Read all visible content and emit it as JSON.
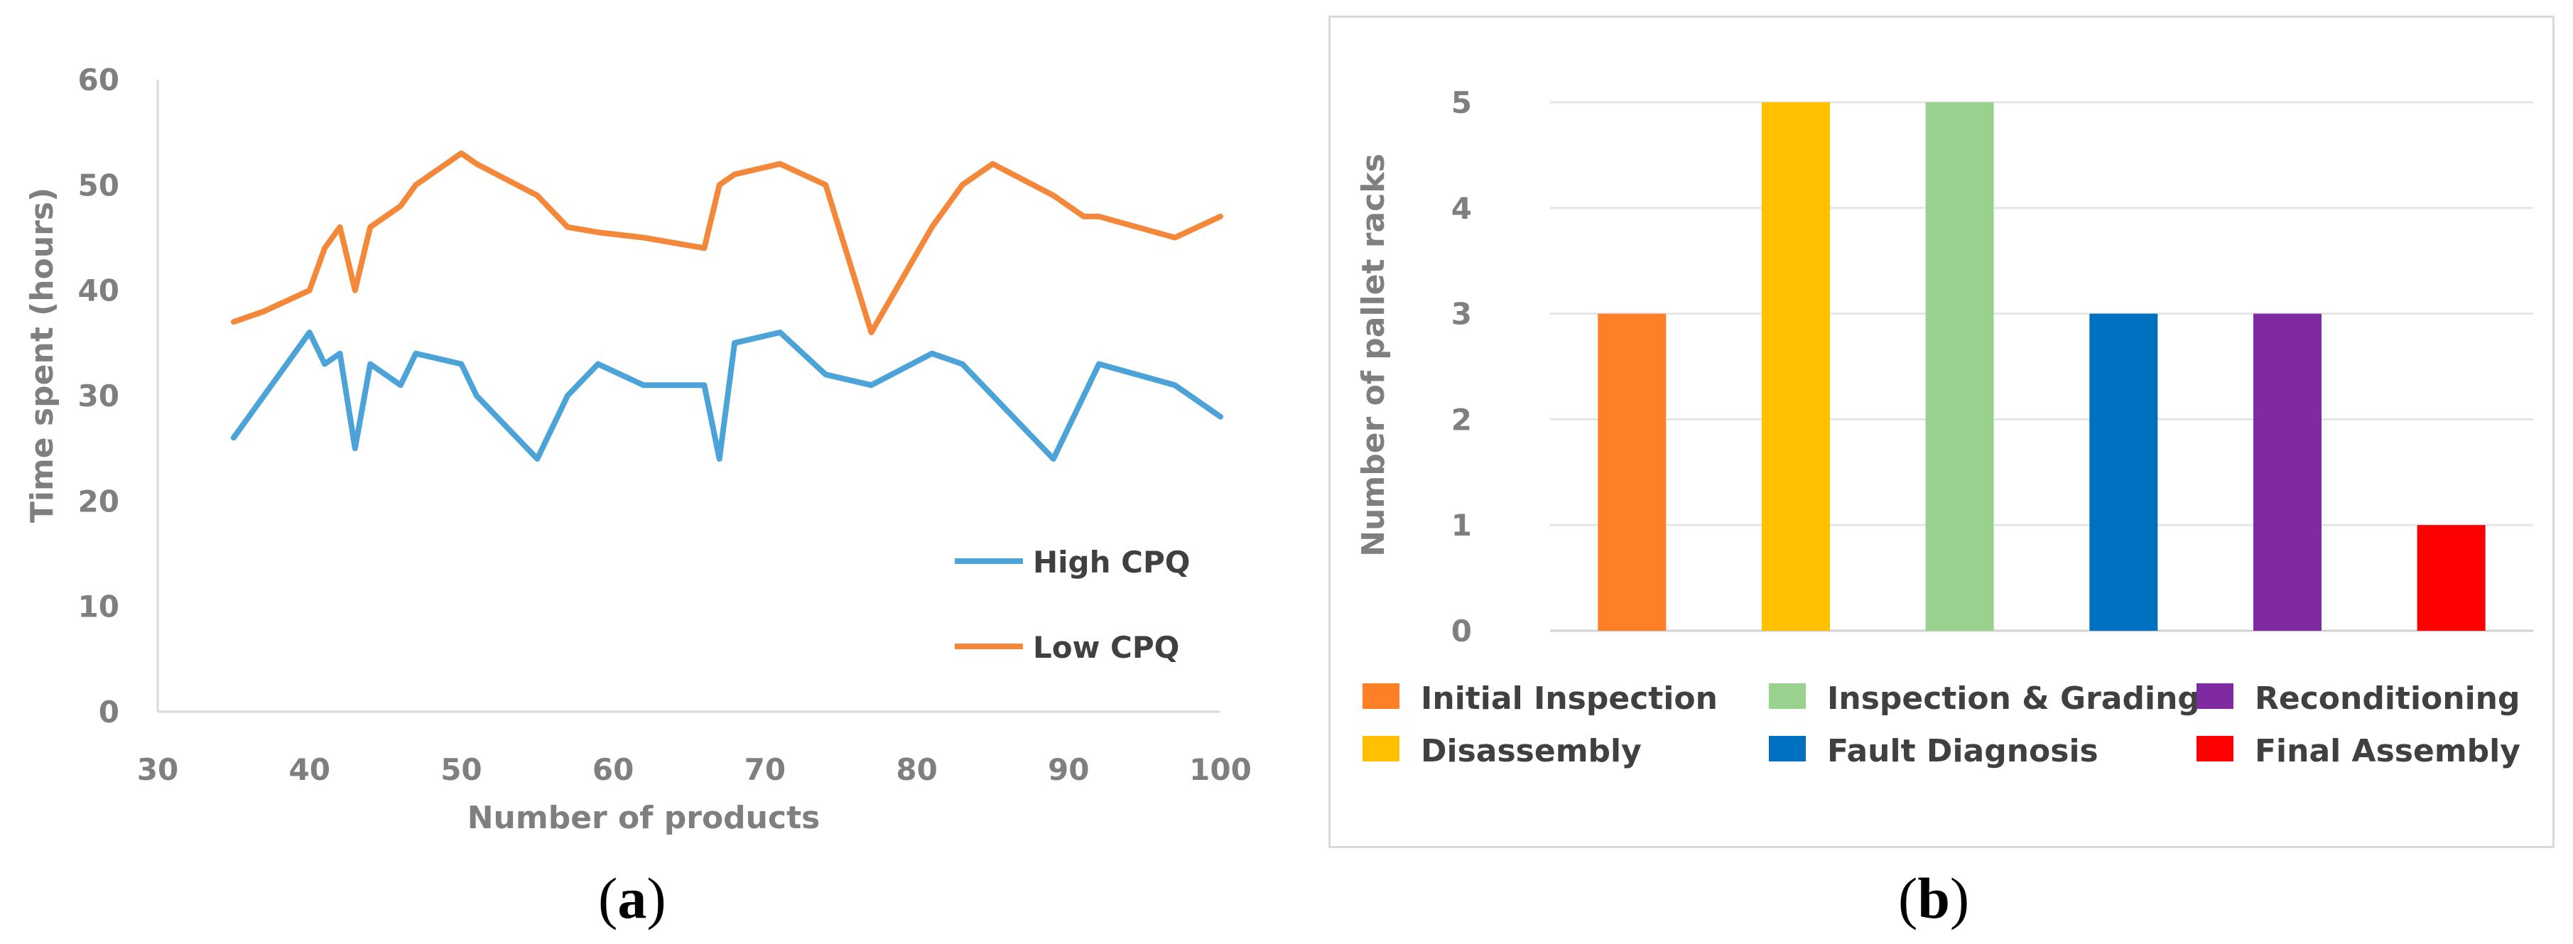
{
  "captions": {
    "a": {
      "open": "(",
      "letter": "a",
      "close": ")"
    },
    "b": {
      "open": "(",
      "letter": "b",
      "close": ")"
    }
  },
  "chart_data": [
    {
      "type": "line",
      "title": "",
      "xlabel": "Number of products",
      "ylabel": "Time spent (hours)",
      "xlim": [
        30,
        100
      ],
      "ylim": [
        0,
        60
      ],
      "xticks": [
        30,
        40,
        50,
        60,
        70,
        80,
        90,
        100
      ],
      "yticks": [
        0,
        10,
        20,
        30,
        40,
        50,
        60
      ],
      "grid": false,
      "legend": "bottom-right",
      "series": [
        {
          "name": "High CPQ",
          "color": "#4ca3d8",
          "x": [
            35,
            37,
            40,
            41,
            42,
            43,
            44,
            46,
            47,
            50,
            51,
            55,
            57,
            59,
            62,
            66,
            67,
            68,
            71,
            74,
            77,
            81,
            83,
            89,
            92,
            97,
            100
          ],
          "y": [
            26,
            30,
            36,
            33,
            34,
            25,
            33,
            31,
            34,
            33,
            30,
            24,
            30,
            33,
            31,
            31,
            24,
            35,
            36,
            32,
            31,
            34,
            33,
            24,
            33,
            31,
            28
          ]
        },
        {
          "name": "Low CPQ",
          "color": "#f4883a",
          "x": [
            35,
            37,
            40,
            41,
            42,
            43,
            44,
            46,
            47,
            50,
            51,
            55,
            57,
            59,
            62,
            66,
            67,
            68,
            71,
            74,
            77,
            81,
            83,
            85,
            89,
            91,
            92,
            97,
            100
          ],
          "y": [
            37,
            38,
            40,
            44,
            46,
            40,
            46,
            48,
            50,
            53,
            52,
            49,
            46,
            45.5,
            45,
            44,
            50,
            51,
            52,
            50,
            36,
            46,
            50,
            52,
            49,
            47,
            47,
            45,
            47
          ]
        }
      ]
    },
    {
      "type": "bar",
      "title": "",
      "xlabel": "",
      "ylabel": "Number of pallet racks",
      "ylim": [
        0,
        5
      ],
      "yticks": [
        0,
        1,
        2,
        3,
        4,
        5
      ],
      "grid": true,
      "legend": "bottom",
      "categories": [
        "Initial Inspection",
        "Disassembly",
        "Inspection & Grading",
        "Fault Diagnosis",
        "Reconditioning",
        "Final Assembly"
      ],
      "values": [
        3,
        5,
        5,
        3,
        3,
        1
      ],
      "colors": [
        "#ff7f27",
        "#ffc000",
        "#99d18f",
        "#0070c0",
        "#7f2aa0",
        "#ff0000"
      ]
    }
  ]
}
